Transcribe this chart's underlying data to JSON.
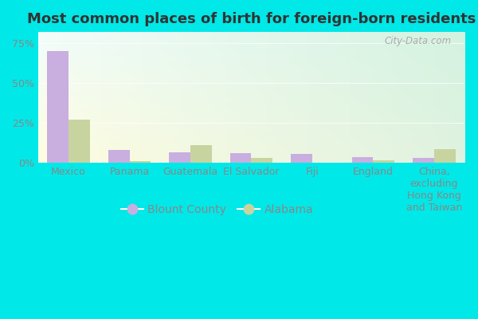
{
  "title": "Most common places of birth for foreign-born residents",
  "categories": [
    "Mexico",
    "Panama",
    "Guatemala",
    "El Salvador",
    "Fiji",
    "England",
    "China,\nexcluding\nHong Kong\nand Taiwan"
  ],
  "blount_county": [
    70.0,
    8.0,
    6.5,
    6.0,
    5.5,
    3.5,
    3.0
  ],
  "alabama": [
    27.0,
    1.0,
    11.0,
    3.0,
    0.0,
    1.5,
    8.5
  ],
  "blount_color": "#c9aee0",
  "alabama_color": "#c8d4a0",
  "bar_width": 0.35,
  "yticks": [
    0,
    25,
    50,
    75
  ],
  "ytick_labels": [
    "0%",
    "25%",
    "50%",
    "75%"
  ],
  "ylim": [
    0,
    82
  ],
  "fig_bg_color": "#00e8e8",
  "legend_labels": [
    "Blount County",
    "Alabama"
  ],
  "watermark": "City-Data.com",
  "title_fontsize": 13,
  "tick_fontsize": 9,
  "legend_fontsize": 10,
  "tick_color": "#888888",
  "label_color": "#888888"
}
